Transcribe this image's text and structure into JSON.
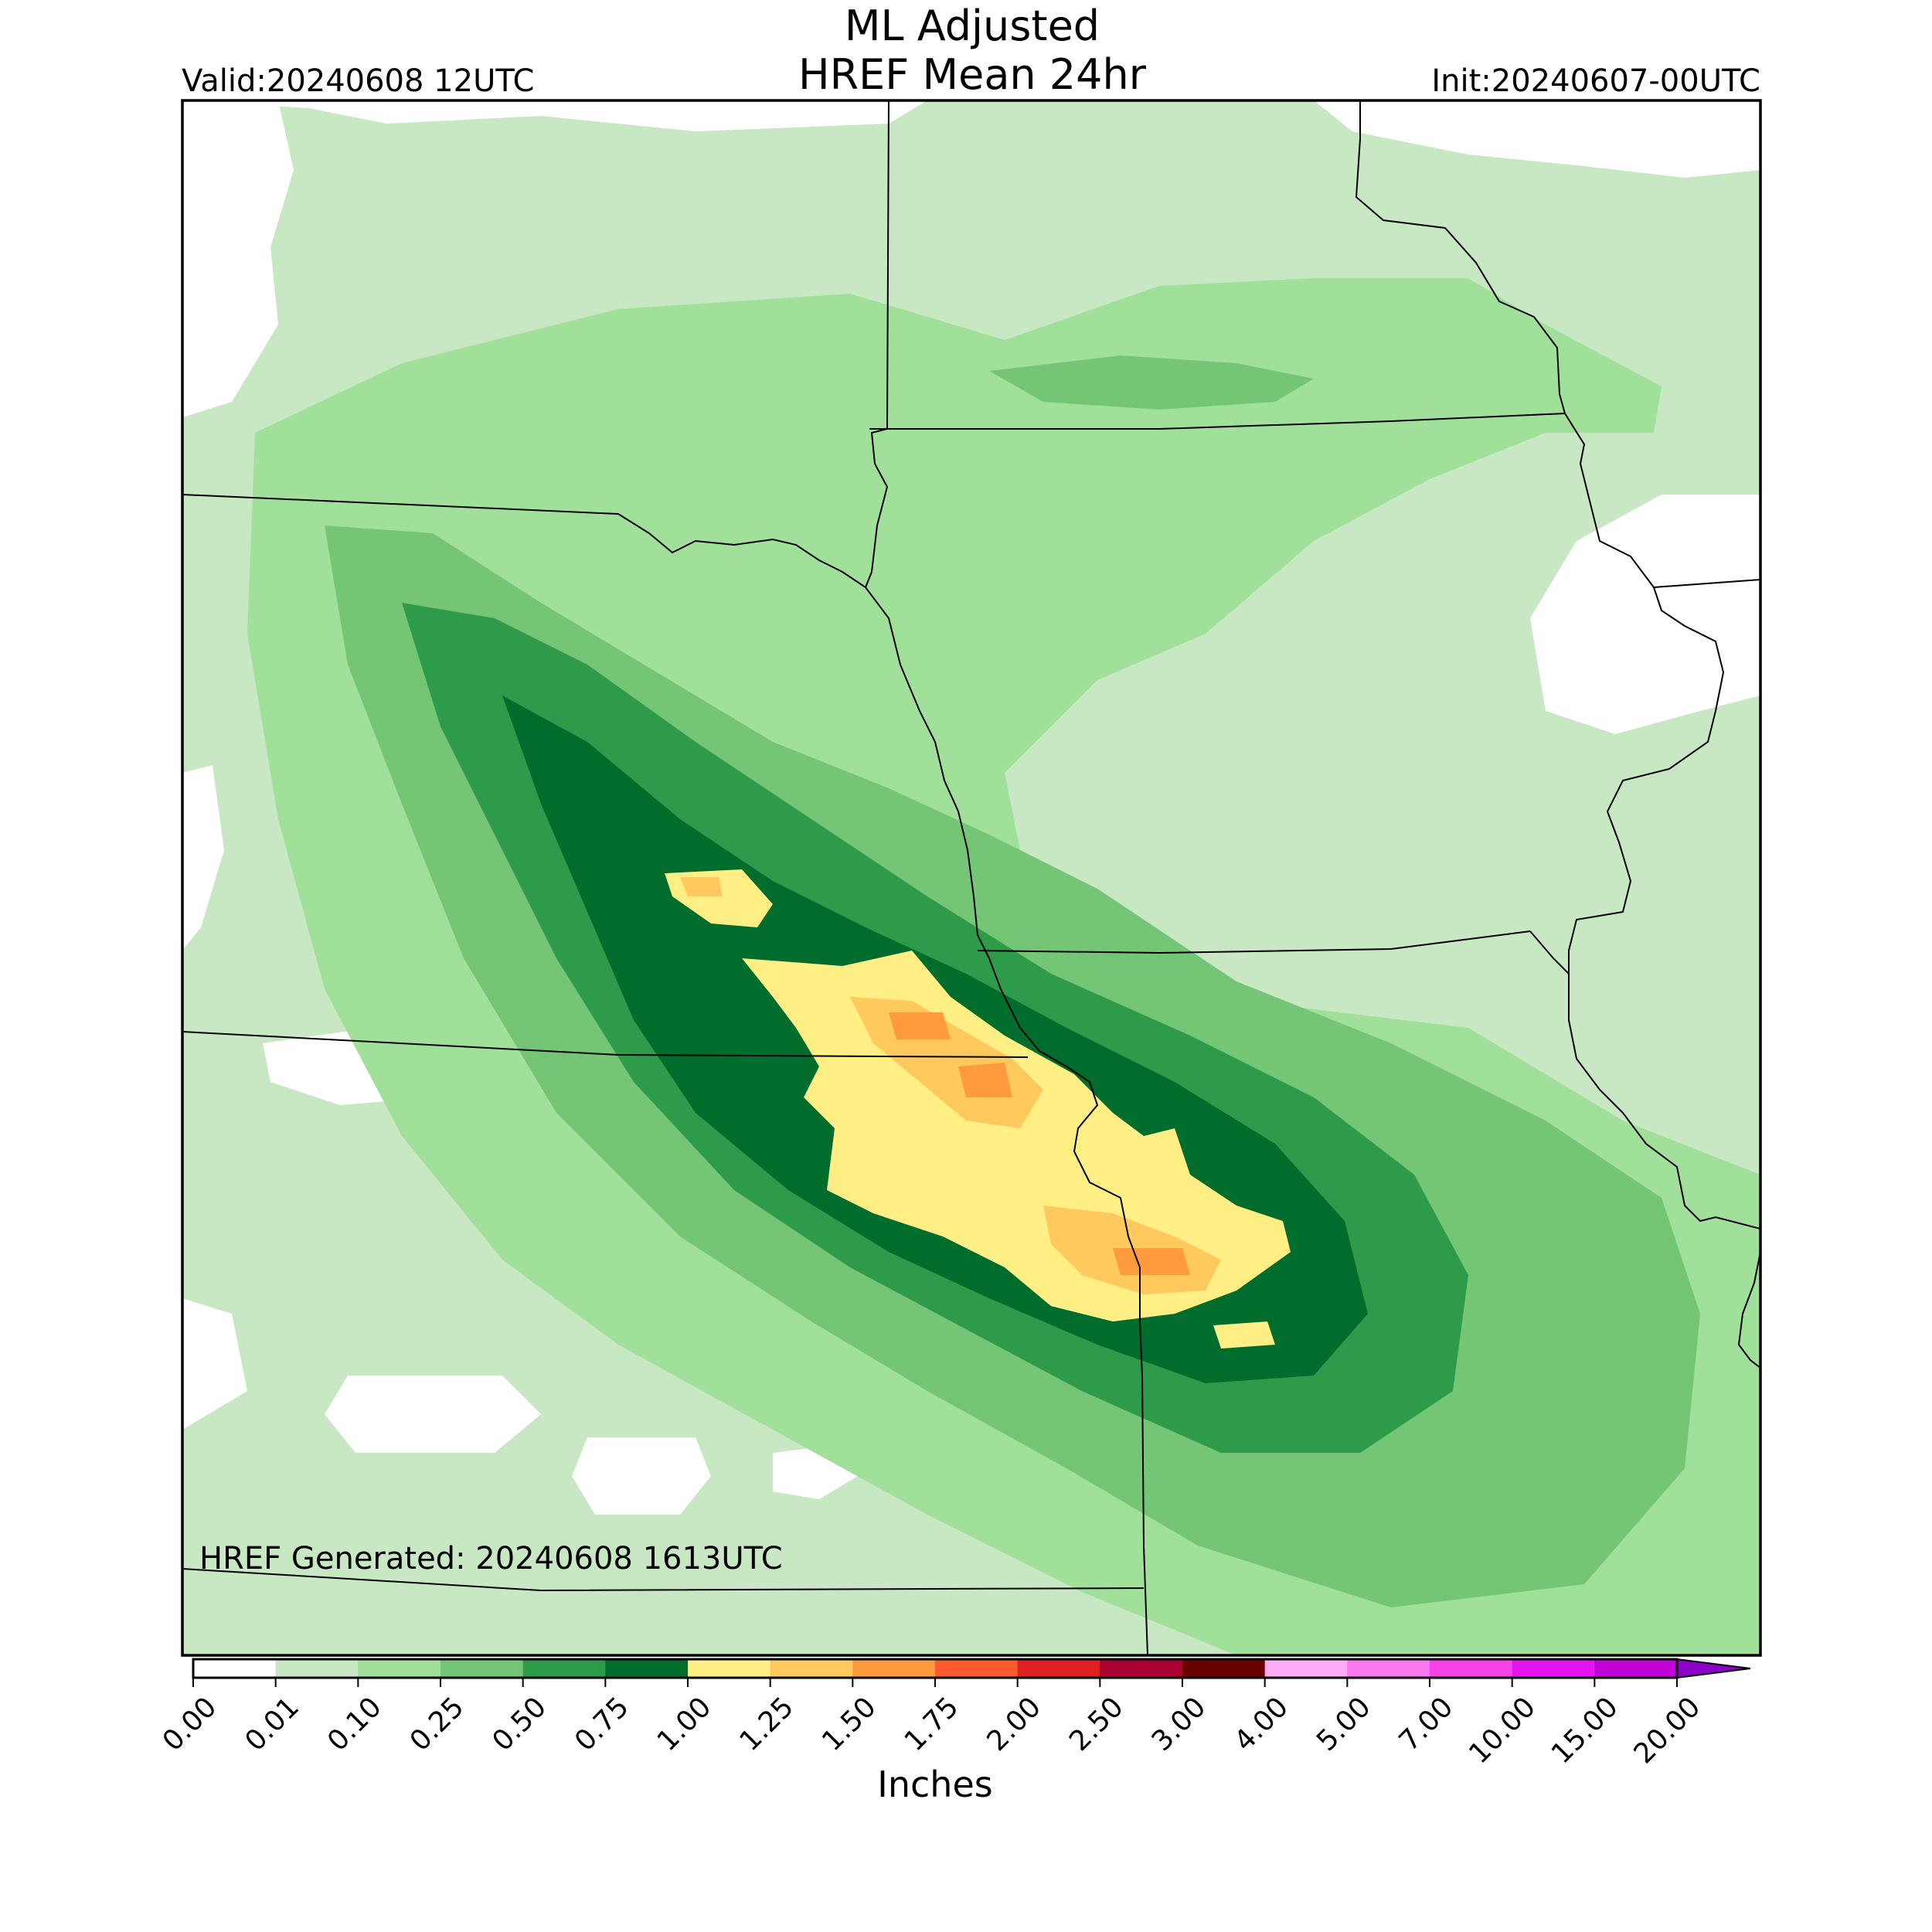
{
  "title": {
    "line1": "ML Adjusted",
    "line2": "HREF Mean 24hr"
  },
  "valid_label": "Valid:20240608 12UTC",
  "init_label": "Init:20240607-00UTC",
  "generated_label": "HREF Generated: 20240608 1613UTC",
  "colorbar": {
    "units_label": "Inches",
    "levels": [
      "0.00",
      "0.01",
      "0.10",
      "0.25",
      "0.50",
      "0.75",
      "1.00",
      "1.25",
      "1.50",
      "1.75",
      "2.00",
      "2.50",
      "3.00",
      "4.00",
      "5.00",
      "7.00",
      "10.00",
      "15.00",
      "20.00"
    ],
    "colors": [
      "#ffffff",
      "#c7e8c3",
      "#a1e09b",
      "#74c576",
      "#2e9b4a",
      "#006d2c",
      "#ffef85",
      "#ffc95d",
      "#ff9a3d",
      "#ff5a2e",
      "#de2022",
      "#aa0032",
      "#6b0000",
      "#fbacf5",
      "#fa78ef",
      "#f742ea",
      "#e414f0",
      "#c203d8",
      "#8d01c8"
    ],
    "extend": "max"
  },
  "map": {
    "background": "#c7e8c3",
    "boundary_color": "#000000"
  }
}
